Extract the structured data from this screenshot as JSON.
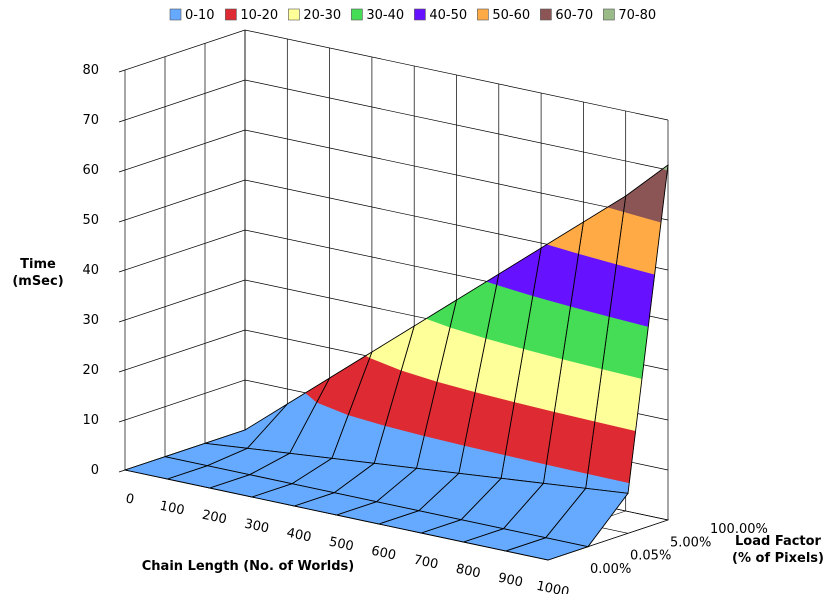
{
  "chart_data": {
    "type": "surface",
    "z_title_lines": [
      "Time",
      "(mSec)"
    ],
    "x_title": "Chain Length (No. of Worlds)",
    "y_title_lines": [
      "Load Factor",
      "(% of Pixels)"
    ],
    "z_ticks": [
      0,
      10,
      20,
      30,
      40,
      50,
      60,
      70,
      80
    ],
    "zlim": [
      0,
      80
    ],
    "x": [
      0,
      100,
      200,
      300,
      400,
      500,
      600,
      700,
      800,
      900,
      1000
    ],
    "y_labels": [
      "0.00%",
      "0.05%",
      "5.00%",
      "100.00%"
    ],
    "bands": [
      {
        "label": "0-10",
        "color": "#66aaff"
      },
      {
        "label": "10-20",
        "color": "#dd2a33"
      },
      {
        "label": "20-30",
        "color": "#ffff99"
      },
      {
        "label": "30-40",
        "color": "#44dd55"
      },
      {
        "label": "40-50",
        "color": "#6611ff"
      },
      {
        "label": "50-60",
        "color": "#ffaa44"
      },
      {
        "label": "60-70",
        "color": "#8b5555"
      },
      {
        "label": "70-80",
        "color": "#99bb88"
      }
    ],
    "series": [
      {
        "y": "0.00%",
        "values": [
          0,
          0,
          0,
          0,
          0,
          0,
          0,
          0,
          0,
          0,
          0
        ]
      },
      {
        "y": "0.05%",
        "values": [
          0,
          0,
          0,
          0,
          0,
          0,
          0,
          0,
          0,
          0,
          0
        ]
      },
      {
        "y": "5.00%",
        "values": [
          0,
          0.8,
          1.6,
          2.4,
          3.2,
          4,
          4.8,
          5.6,
          6.4,
          7.2,
          8
        ]
      },
      {
        "y": "100.00%",
        "values": [
          0,
          7,
          14,
          21,
          28,
          35,
          42,
          49,
          56,
          63,
          71
        ]
      }
    ],
    "legend_position": "top"
  }
}
